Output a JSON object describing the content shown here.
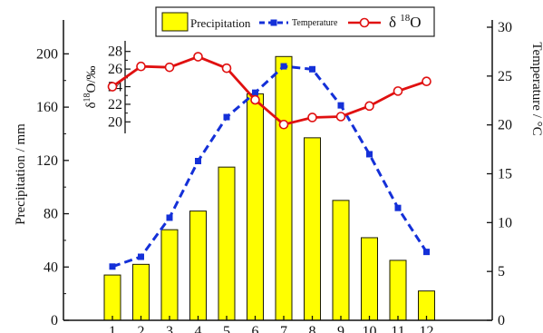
{
  "chart_data": {
    "type": "bar",
    "categories": [
      "1",
      "2",
      "3",
      "4",
      "5",
      "6",
      "7",
      "8",
      "9",
      "10",
      "11",
      "12"
    ],
    "series": [
      {
        "name": "Precipitation",
        "type": "bar",
        "axis": "left",
        "values": [
          34,
          42,
          68,
          82,
          115,
          170,
          198,
          137,
          90,
          62,
          45,
          22
        ],
        "color": "#ffff00",
        "edge_color": "#1a1a00"
      },
      {
        "name": "Temperature",
        "type": "line",
        "axis": "right",
        "values": [
          5.5,
          6.5,
          10.5,
          16.3,
          20.8,
          23.3,
          26.0,
          25.7,
          22.0,
          17.0,
          11.5,
          7.0
        ],
        "color": "#1430d8",
        "line_style": "dashed",
        "marker": "square"
      },
      {
        "name": "δ 18O",
        "type": "line",
        "axis": "inset",
        "values": [
          24.0,
          26.3,
          26.2,
          27.4,
          26.1,
          22.5,
          19.7,
          20.5,
          20.6,
          21.8,
          23.5,
          24.6
        ],
        "color": "#e01010",
        "line_style": "solid",
        "marker": "open-circle"
      }
    ],
    "xlabel": "",
    "y_left": {
      "label": "Precipitation / mm",
      "lim": [
        0,
        220
      ],
      "ticks": [
        "0",
        "40",
        "80",
        "120",
        "160",
        "200"
      ]
    },
    "y_right": {
      "label": "Temperature / °C",
      "lim": [
        0,
        30
      ],
      "ticks": [
        "0",
        "5",
        "10",
        "15",
        "20",
        "25",
        "30"
      ]
    },
    "y_inset": {
      "label": "δ18O/‰",
      "lim": [
        18.9,
        29.0
      ],
      "ticks": [
        "20",
        "22",
        "24",
        "26",
        "28"
      ]
    },
    "legend": {
      "placement": "top-center",
      "entries": [
        "Precipitation",
        "Temperature",
        "δ 18O"
      ]
    },
    "grid": false
  }
}
